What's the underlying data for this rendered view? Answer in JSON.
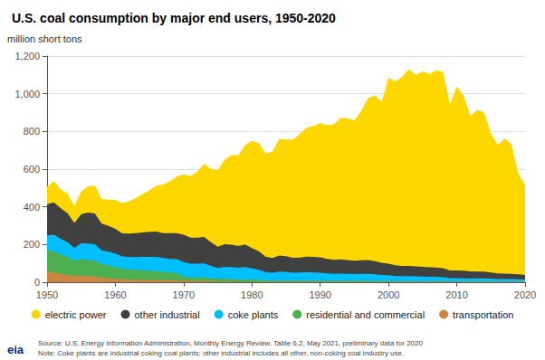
{
  "chart_data": {
    "type": "area",
    "stacked": true,
    "title": "U.S. coal consumption by major end users, 1950-2020",
    "ylabel": "million short tons",
    "annotations": [
      "Source: U.S. Energy Information Administration, Monthly Energy Review, Table 6.2, May 2021, preliminary data for 2020",
      "Note: Coke plants are industrial coking coal plants; other industrial includes all other, non-coking coal industry use.",
      "eia"
    ],
    "x": [
      1950,
      1951,
      1952,
      1953,
      1954,
      1955,
      1956,
      1957,
      1958,
      1959,
      1960,
      1961,
      1962,
      1963,
      1964,
      1965,
      1966,
      1967,
      1968,
      1969,
      1970,
      1971,
      1972,
      1973,
      1974,
      1975,
      1976,
      1977,
      1978,
      1979,
      1980,
      1981,
      1982,
      1983,
      1984,
      1985,
      1986,
      1987,
      1988,
      1989,
      1990,
      1991,
      1992,
      1993,
      1994,
      1995,
      1996,
      1997,
      1998,
      1999,
      2000,
      2001,
      2002,
      2003,
      2004,
      2005,
      2006,
      2007,
      2008,
      2009,
      2010,
      2011,
      2012,
      2013,
      2014,
      2015,
      2016,
      2017,
      2018,
      2019,
      2020
    ],
    "series": [
      {
        "name": "transportation",
        "color": "#CD853F",
        "values": [
          55,
          52,
          45,
          39,
          32,
          36,
          33,
          31,
          24,
          22,
          18,
          16,
          14,
          13,
          12,
          12,
          11,
          11,
          10,
          9,
          8,
          7,
          6,
          6,
          5,
          4,
          4,
          4,
          3,
          3,
          3,
          3,
          2,
          2,
          2,
          2,
          2,
          2,
          2,
          2,
          2,
          2,
          2,
          2,
          2,
          2,
          2,
          2,
          2,
          2,
          2,
          2,
          2,
          2,
          2,
          2,
          2,
          2,
          2,
          2,
          2,
          2,
          2,
          2,
          2,
          2,
          2,
          2,
          2,
          2,
          2
        ]
      },
      {
        "name": "residential and commercial",
        "color": "#4CAF50",
        "values": [
          114,
          112,
          103,
          95,
          83,
          88,
          85,
          84,
          72,
          67,
          62,
          57,
          54,
          52,
          51,
          49,
          48,
          44,
          42,
          40,
          21,
          20,
          19,
          18,
          16,
          15,
          14,
          13,
          12,
          11,
          10,
          9,
          8,
          7,
          7,
          7,
          6,
          6,
          6,
          6,
          5,
          5,
          5,
          5,
          5,
          5,
          5,
          4,
          4,
          4,
          4,
          3,
          3,
          3,
          3,
          3,
          3,
          3,
          3,
          2,
          2,
          2,
          2,
          2,
          2,
          2,
          2,
          2,
          2,
          2,
          2
        ]
      },
      {
        "name": "coke plants",
        "color": "#00BFFF",
        "values": [
          80,
          88,
          83,
          79,
          67,
          82,
          87,
          87,
          73,
          73,
          72,
          64,
          66,
          68,
          71,
          73,
          75,
          73,
          72,
          74,
          78,
          72,
          73,
          76,
          65,
          57,
          64,
          63,
          62,
          67,
          60,
          54,
          44,
          42,
          48,
          46,
          43,
          44,
          46,
          44,
          43,
          40,
          38,
          39,
          38,
          36,
          37,
          38,
          36,
          32,
          31,
          28,
          27,
          27,
          26,
          25,
          24,
          24,
          22,
          18,
          18,
          17,
          16,
          16,
          16,
          15,
          13,
          13,
          13,
          12,
          11
        ]
      },
      {
        "name": "other industrial",
        "color": "#404040",
        "values": [
          165,
          172,
          162,
          153,
          133,
          155,
          165,
          163,
          142,
          137,
          131,
          122,
          124,
          127,
          130,
          134,
          135,
          133,
          136,
          138,
          145,
          138,
          138,
          140,
          126,
          113,
          120,
          119,
          115,
          120,
          108,
          98,
          82,
          77,
          85,
          83,
          79,
          79,
          82,
          82,
          82,
          77,
          74,
          75,
          73,
          71,
          73,
          74,
          70,
          65,
          62,
          57,
          55,
          54,
          53,
          52,
          50,
          49,
          47,
          41,
          41,
          40,
          38,
          37,
          36,
          33,
          30,
          29,
          28,
          26,
          24
        ]
      },
      {
        "name": "electric power",
        "color": "#FFD700",
        "values": [
          93,
          112,
          100,
          104,
          91,
          122,
          139,
          148,
          131,
          139,
          154,
          161,
          172,
          187,
          204,
          220,
          244,
          257,
          277,
          299,
          320,
          327,
          351,
          389,
          389,
          406,
          448,
          477,
          481,
          527,
          569,
          574,
          548,
          565,
          618,
          620,
          626,
          655,
          685,
          695,
          713,
          710,
          720,
          752,
          752,
          745,
          793,
          858,
          880,
          853,
          986,
          976,
          1004,
          1045,
          1016,
          1037,
          1026,
          1046,
          1042,
          882,
          976,
          928,
          824,
          858,
          844,
          739,
          681,
          716,
          688,
          537,
          477
        ]
      }
    ],
    "xlim": [
      1950,
      2020
    ],
    "xticks": [
      1950,
      1960,
      1970,
      1980,
      1990,
      2000,
      2010,
      2020
    ],
    "ylim": [
      0,
      1200
    ],
    "yticks": [
      0,
      200,
      400,
      600,
      800,
      {
        "value": 1000,
        "label": "1,000"
      },
      {
        "value": 1200,
        "label": "1,200"
      }
    ],
    "grid": true,
    "legend": "bottom"
  }
}
